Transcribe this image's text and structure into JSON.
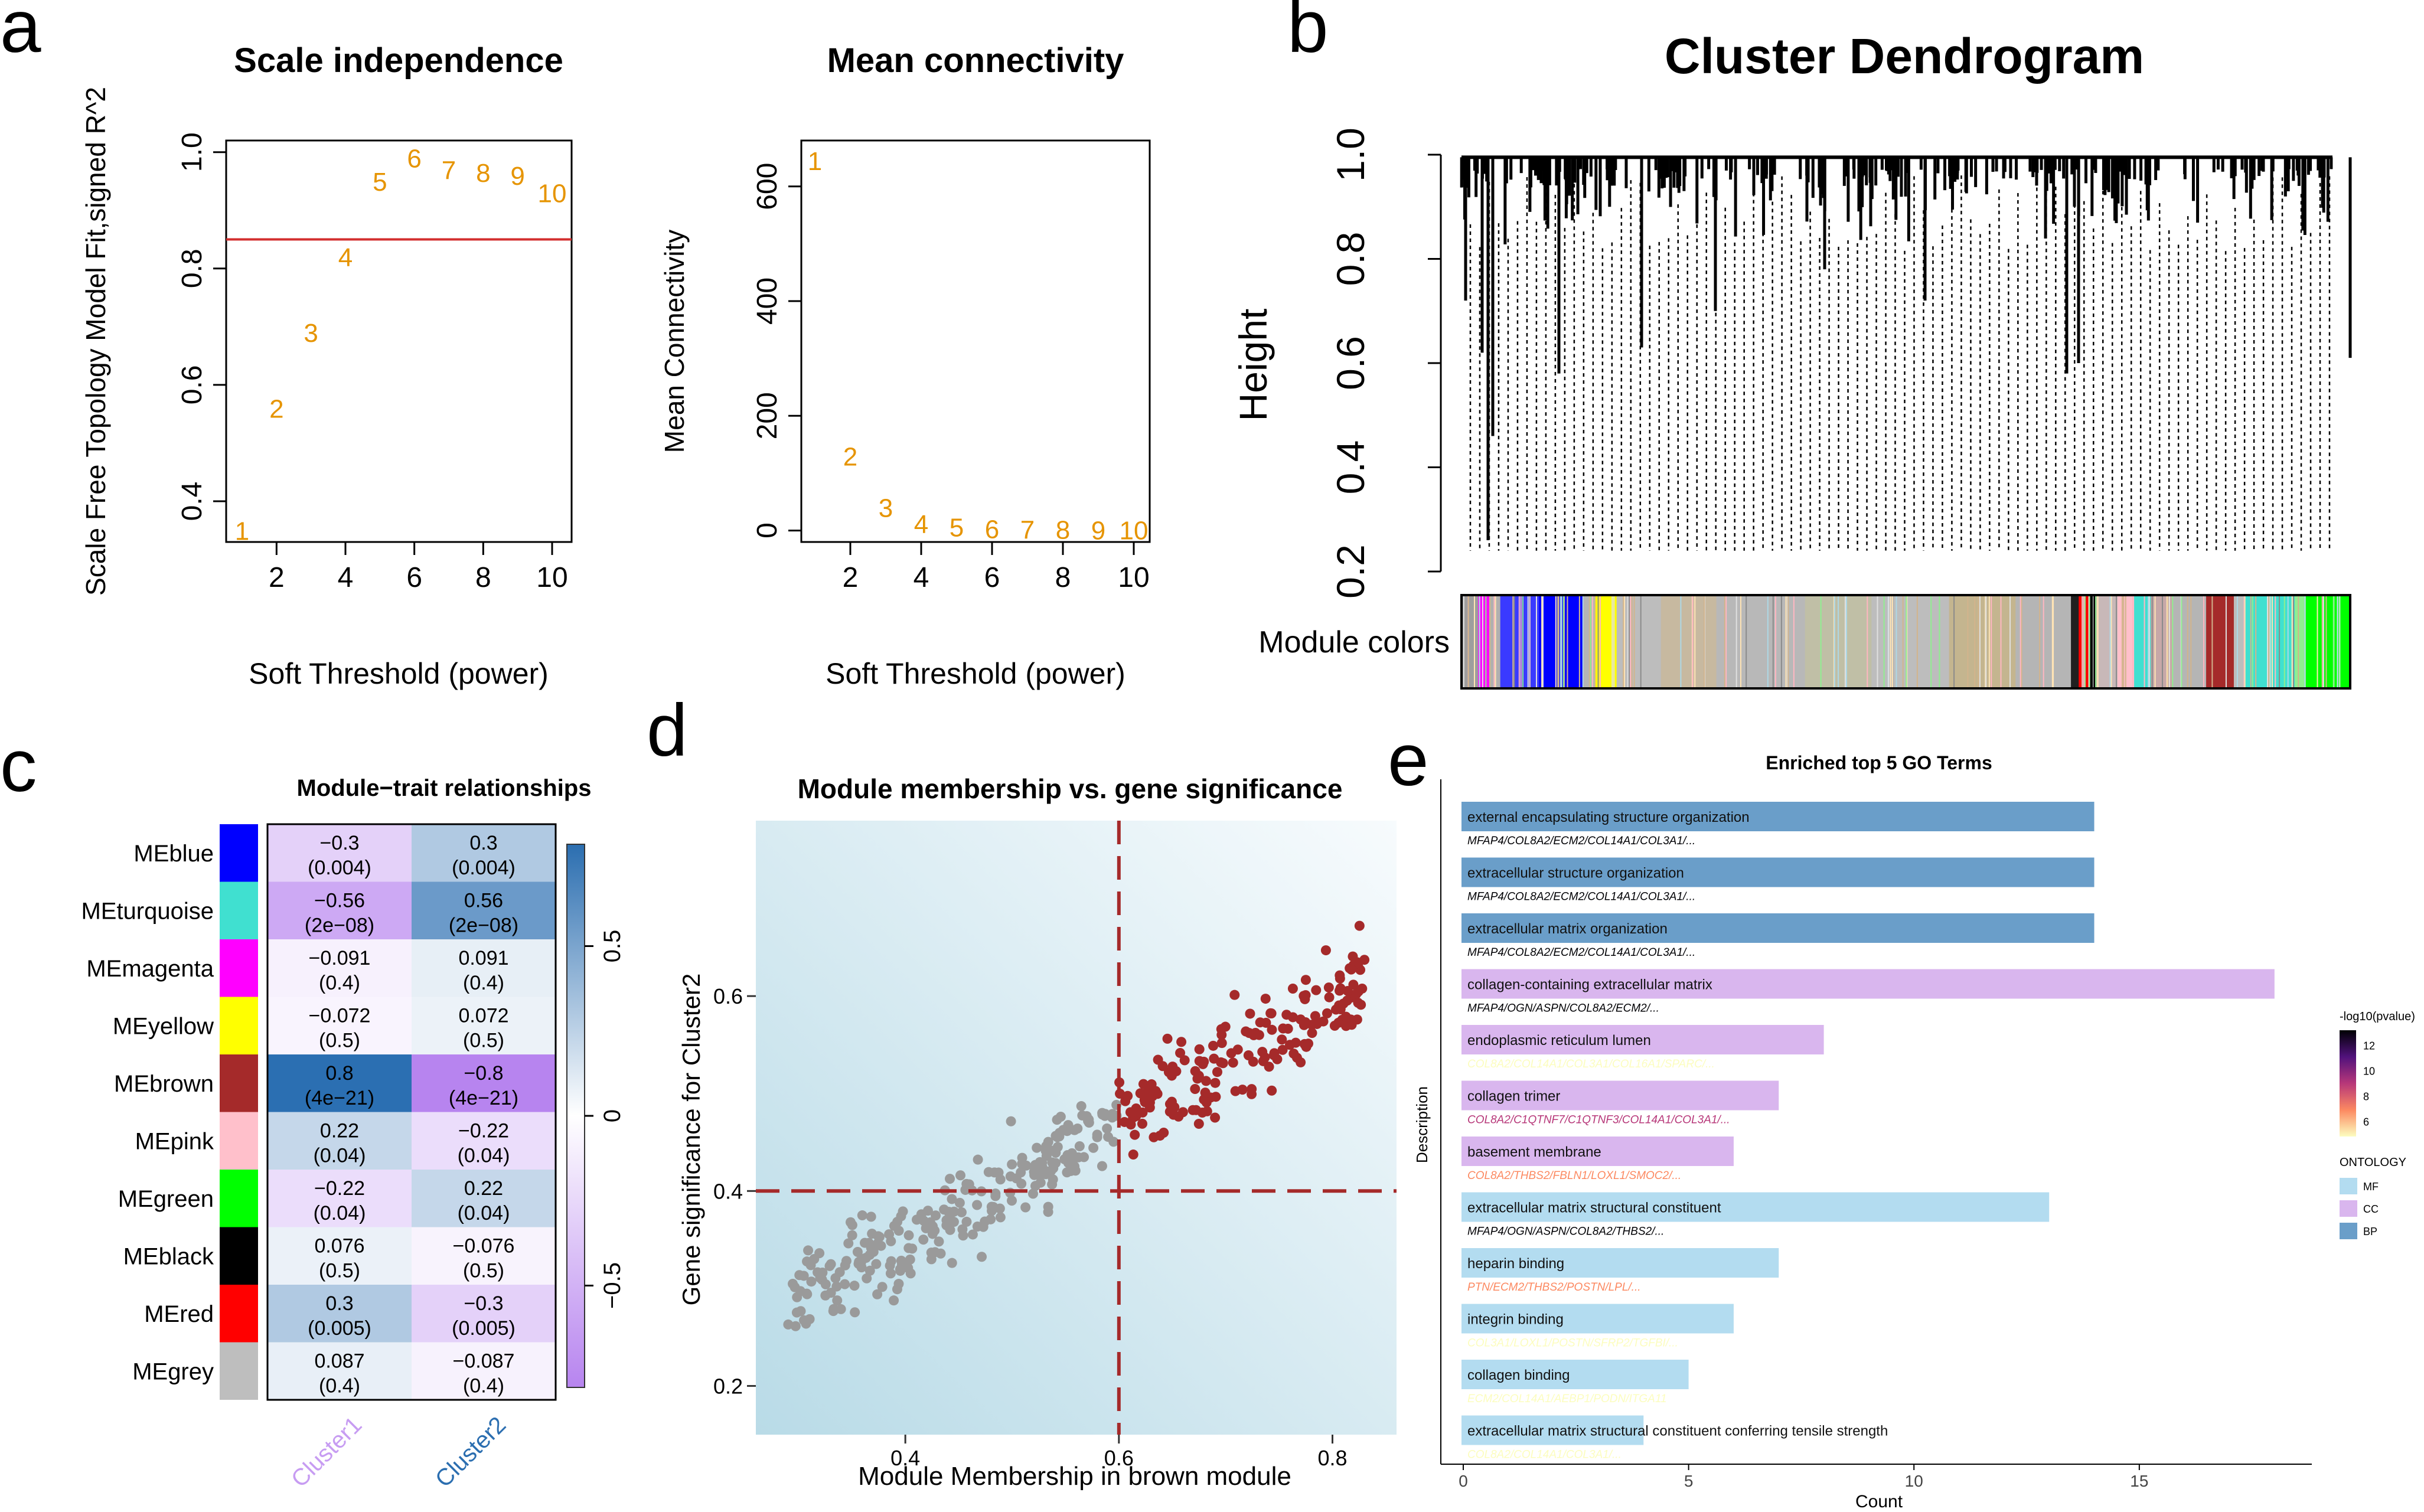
{
  "panel_letters": {
    "a": "a",
    "b": "b",
    "c": "c",
    "d": "d",
    "e": "e"
  },
  "chart_data": [
    {
      "id": "scale-independence",
      "type": "scatter",
      "title": "Scale independence",
      "xlabel": "Soft Threshold (power)",
      "ylabel": "Scale Free Topology Model Fit,signed R^2",
      "xlim": [
        1,
        10
      ],
      "ylim": [
        0.33,
        1.02
      ],
      "x_ticks": [
        "2",
        "4",
        "6",
        "8",
        "10"
      ],
      "y_ticks": [
        "0.4",
        "0.6",
        "0.8",
        "1.0"
      ],
      "threshold_line": 0.85,
      "points": [
        {
          "x": 1,
          "y": 0.35,
          "label": "1"
        },
        {
          "x": 2,
          "y": 0.56,
          "label": "2"
        },
        {
          "x": 3,
          "y": 0.69,
          "label": "3"
        },
        {
          "x": 4,
          "y": 0.82,
          "label": "4"
        },
        {
          "x": 5,
          "y": 0.95,
          "label": "5"
        },
        {
          "x": 6,
          "y": 0.99,
          "label": "6"
        },
        {
          "x": 7,
          "y": 0.97,
          "label": "7"
        },
        {
          "x": 8,
          "y": 0.965,
          "label": "8"
        },
        {
          "x": 9,
          "y": 0.96,
          "label": "9"
        },
        {
          "x": 10,
          "y": 0.93,
          "label": "10"
        }
      ]
    },
    {
      "id": "mean-connectivity",
      "type": "scatter",
      "title": "Mean connectivity",
      "xlabel": "Soft Threshold (power)",
      "ylabel": "Mean Connectivity",
      "xlim": [
        1,
        10
      ],
      "ylim": [
        -20,
        680
      ],
      "x_ticks": [
        "2",
        "4",
        "6",
        "8",
        "10"
      ],
      "y_ticks": [
        "0",
        "200",
        "400",
        "600"
      ],
      "points": [
        {
          "x": 1,
          "y": 645,
          "label": "1"
        },
        {
          "x": 2,
          "y": 130,
          "label": "2"
        },
        {
          "x": 3,
          "y": 40,
          "label": "3"
        },
        {
          "x": 4,
          "y": 12,
          "label": "4"
        },
        {
          "x": 5,
          "y": 6,
          "label": "5"
        },
        {
          "x": 6,
          "y": 3,
          "label": "6"
        },
        {
          "x": 7,
          "y": 2,
          "label": "7"
        },
        {
          "x": 8,
          "y": 2,
          "label": "8"
        },
        {
          "x": 9,
          "y": 1,
          "label": "9"
        },
        {
          "x": 10,
          "y": 1,
          "label": "10"
        }
      ]
    },
    {
      "id": "cluster-dendrogram",
      "type": "dendrogram",
      "title": "Cluster Dendrogram",
      "ylabel": "Height",
      "ylim": [
        0.2,
        1.0
      ],
      "y_ticks": [
        "0.2",
        "0.4",
        "0.6",
        "0.8",
        "1.0"
      ],
      "colorbar_label": "Module colors",
      "module_segments": [
        {
          "color": "#9e9e9e",
          "width": 0.015
        },
        {
          "color": "#ff00ff",
          "width": 0.01
        },
        {
          "color": "#b0b0b0",
          "width": 0.01
        },
        {
          "color": "#3a3aff",
          "width": 0.035
        },
        {
          "color": "#0000ff",
          "width": 0.04
        },
        {
          "color": "#b5b5b5",
          "width": 0.01
        },
        {
          "color": "#ffff00",
          "width": 0.02
        },
        {
          "color": "#bdbdbd",
          "width": 0.04
        },
        {
          "color": "#c7b9a0",
          "width": 0.05
        },
        {
          "color": "#b8b8b8",
          "width": 0.08
        },
        {
          "color": "#c0bfa6",
          "width": 0.06
        },
        {
          "color": "#bdbdbd",
          "width": 0.07
        },
        {
          "color": "#c4b58f",
          "width": 0.06
        },
        {
          "color": "#b5b5b5",
          "width": 0.05
        },
        {
          "color": "#202020",
          "width": 0.007
        },
        {
          "color": "#ff0000",
          "width": 0.01
        },
        {
          "color": "#000000",
          "width": 0.005
        },
        {
          "color": "#c8b8b8",
          "width": 0.02
        },
        {
          "color": "#ffc0cb",
          "width": 0.015
        },
        {
          "color": "#40e0d0",
          "width": 0.015
        },
        {
          "color": "#c7a8a8",
          "width": 0.02
        },
        {
          "color": "#b5b5b5",
          "width": 0.03
        },
        {
          "color": "#a52a2a",
          "width": 0.025
        },
        {
          "color": "#bdbdbd",
          "width": 0.01
        },
        {
          "color": "#40e0d0",
          "width": 0.045
        },
        {
          "color": "#90ee90",
          "width": 0.01
        },
        {
          "color": "#00ff00",
          "width": 0.04
        }
      ]
    },
    {
      "id": "module-trait",
      "type": "heatmap",
      "title": "Module−trait relationships",
      "columns": [
        "Cluster1",
        "Cluster2"
      ],
      "rows": [
        {
          "module": "MEblue",
          "color": "#0000ff",
          "cells": [
            {
              "r": -0.3,
              "p": "(0.004)",
              "txt": "−0.3"
            },
            {
              "r": 0.3,
              "p": "(0.004)",
              "txt": "0.3"
            }
          ]
        },
        {
          "module": "MEturquoise",
          "color": "#40e0d0",
          "cells": [
            {
              "r": -0.56,
              "p": "(2e−08)",
              "txt": "−0.56"
            },
            {
              "r": 0.56,
              "p": "(2e−08)",
              "txt": "0.56"
            }
          ]
        },
        {
          "module": "MEmagenta",
          "color": "#ff00ff",
          "cells": [
            {
              "r": -0.091,
              "p": "(0.4)",
              "txt": "−0.091"
            },
            {
              "r": 0.091,
              "p": "(0.4)",
              "txt": "0.091"
            }
          ]
        },
        {
          "module": "MEyellow",
          "color": "#ffff00",
          "cells": [
            {
              "r": -0.072,
              "p": "(0.5)",
              "txt": "−0.072"
            },
            {
              "r": 0.072,
              "p": "(0.5)",
              "txt": "0.072"
            }
          ]
        },
        {
          "module": "MEbrown",
          "color": "#a52a2a",
          "cells": [
            {
              "r": 0.8,
              "p": "(4e−21)",
              "txt": "0.8"
            },
            {
              "r": -0.8,
              "p": "(4e−21)",
              "txt": "−0.8"
            }
          ]
        },
        {
          "module": "MEpink",
          "color": "#ffc0cb",
          "cells": [
            {
              "r": 0.22,
              "p": "(0.04)",
              "txt": "0.22"
            },
            {
              "r": -0.22,
              "p": "(0.04)",
              "txt": "−0.22"
            }
          ]
        },
        {
          "module": "MEgreen",
          "color": "#00ff00",
          "cells": [
            {
              "r": -0.22,
              "p": "(0.04)",
              "txt": "−0.22"
            },
            {
              "r": 0.22,
              "p": "(0.04)",
              "txt": "0.22"
            }
          ]
        },
        {
          "module": "MEblack",
          "color": "#000000",
          "cells": [
            {
              "r": 0.076,
              "p": "(0.5)",
              "txt": "0.076"
            },
            {
              "r": -0.076,
              "p": "(0.5)",
              "txt": "−0.076"
            }
          ]
        },
        {
          "module": "MEred",
          "color": "#ff0000",
          "cells": [
            {
              "r": 0.3,
              "p": "(0.005)",
              "txt": "0.3"
            },
            {
              "r": -0.3,
              "p": "(0.005)",
              "txt": "−0.3"
            }
          ]
        },
        {
          "module": "MEgrey",
          "color": "#bebebe",
          "cells": [
            {
              "r": 0.087,
              "p": "(0.4)",
              "txt": "0.087"
            },
            {
              "r": -0.087,
              "p": "(0.4)",
              "txt": "−0.087"
            }
          ]
        }
      ],
      "legend_ticks": [
        "0.5",
        "0",
        "−0.5"
      ],
      "legend_range": [
        -0.8,
        0.8
      ]
    },
    {
      "id": "mm-vs-gs",
      "type": "scatter",
      "title": "Module membership vs. gene significance",
      "xlabel": "Module Membership in brown module",
      "ylabel": "Gene significance for  Cluster2",
      "xlim": [
        0.26,
        0.86
      ],
      "ylim": [
        0.15,
        0.78
      ],
      "x_ticks": [
        "0.4",
        "0.6",
        "0.8"
      ],
      "y_ticks": [
        "0.2",
        "0.4",
        "0.6"
      ],
      "x_cut": 0.6,
      "y_cut": 0.4,
      "n_points": 420,
      "grey_color": "#9a9a9a",
      "brown_color": "#a52a2a"
    },
    {
      "id": "go-enrichment",
      "type": "bar",
      "title": "Enriched top 5 GO Terms",
      "xlabel": "Count",
      "ylabel": "Description",
      "xlim": [
        0,
        18.5
      ],
      "x_ticks": [
        "0",
        "5",
        "10",
        "15"
      ],
      "bars": [
        {
          "term": "external encapsulating structure organization",
          "genes": "MFAP4/COL8A2/ECM2/COL14A1/COL3A1/...",
          "count": 14,
          "ontology": "BP",
          "pvalue": 12.9
        },
        {
          "term": "extracellular structure organization",
          "genes": "MFAP4/COL8A2/ECM2/COL14A1/COL3A1/...",
          "count": 14,
          "ontology": "BP",
          "pvalue": 12.9
        },
        {
          "term": "extracellular matrix organization",
          "genes": "MFAP4/COL8A2/ECM2/COL14A1/COL3A1/...",
          "count": 14,
          "ontology": "BP",
          "pvalue": 12.9
        },
        {
          "term": "collagen-containing extracellular matrix",
          "genes": "MFAP4/OGN/ASPN/COL8A2/ECM2/...",
          "count": 18,
          "ontology": "CC",
          "pvalue": 13.2
        },
        {
          "term": "endoplasmic reticulum lumen",
          "genes": "COL8A2/COL14A1/COL3A1/COL16A1/SPARC/...",
          "count": 8,
          "ontology": "CC",
          "pvalue": 5.0
        },
        {
          "term": "collagen trimer",
          "genes": "COL8A2/C1QTNF7/C1QTNF3/COL14A1/COL3A1/...",
          "count": 7,
          "ontology": "CC",
          "pvalue": 7.6
        },
        {
          "term": "basement membrane",
          "genes": "COL8A2/THBS2/FBLN1/LOXL1/SMOC2/...",
          "count": 6,
          "ontology": "CC",
          "pvalue": 6.0
        },
        {
          "term": "extracellular matrix structural constituent",
          "genes": "MFAP4/OGN/ASPN/COL8A2/THBS2/...",
          "count": 13,
          "ontology": "MF",
          "pvalue": 13.0
        },
        {
          "term": "heparin binding",
          "genes": "PTN/ECM2/THBS2/POSTN/LPL/...",
          "count": 7,
          "ontology": "MF",
          "pvalue": 5.5
        },
        {
          "term": "integrin binding",
          "genes": "COL3A1/LOXL1/POSTN/SFRP2/TGFBI/...",
          "count": 6,
          "ontology": "MF",
          "pvalue": 4.8
        },
        {
          "term": "collagen binding",
          "genes": "ECM2/COL14A1/AEBP1/PODN/ITGA11",
          "count": 5,
          "ontology": "MF",
          "pvalue": 5.3
        },
        {
          "term": "extracellular matrix structural constituent conferring tensile strength",
          "genes": "COL8A2/COL14A1/COL3A1/...",
          "count": 4,
          "ontology": "MF",
          "pvalue": 4.8
        }
      ],
      "pvalue_legend_title": "-log10(pvalue)",
      "pvalue_ticks": [
        "12",
        "10",
        "8",
        "6"
      ],
      "ontology_legend_title": "ONTOLOGY",
      "ontology_keys": [
        {
          "label": "MF",
          "color": "#b3dcf0"
        },
        {
          "label": "CC",
          "color": "#d9b6ee"
        },
        {
          "label": "BP",
          "color": "#6a9ec9"
        }
      ]
    }
  ]
}
